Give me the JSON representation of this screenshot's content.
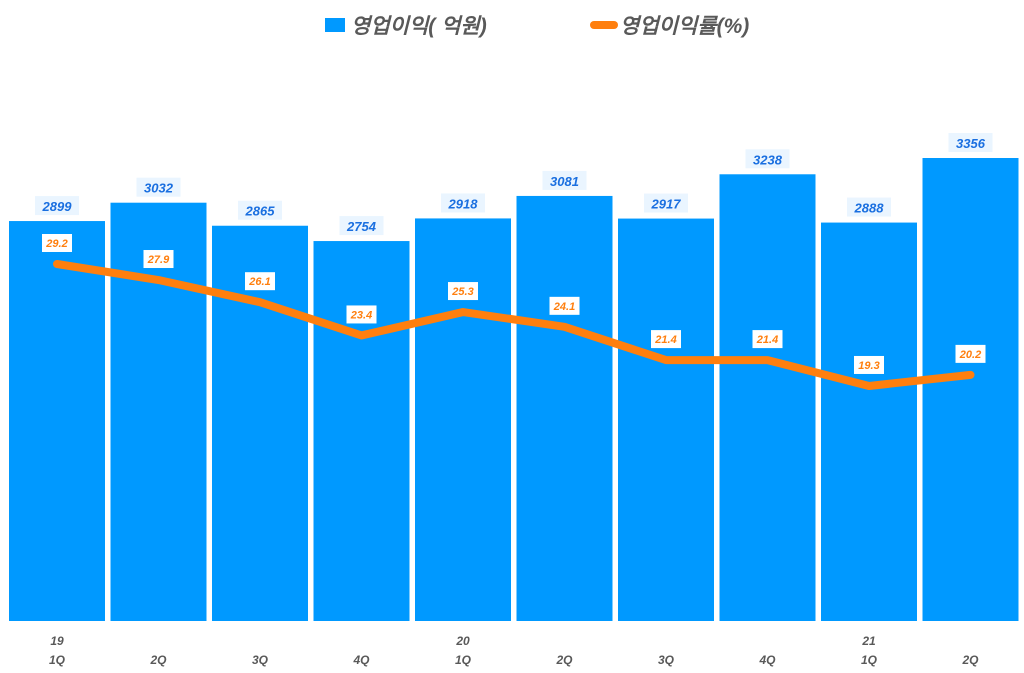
{
  "legend": {
    "bar_label": "영업이익( 억원)",
    "line_label": "영업이익률(%)"
  },
  "colors": {
    "bar": "#0099ff",
    "line": "#ff7f0e",
    "bar_label_text": "#1a6fe0",
    "axis_text": "#595959"
  },
  "chart_data": {
    "type": "bar",
    "title": "",
    "categories": [
      "19 1Q",
      "2Q",
      "3Q",
      "4Q",
      "20 1Q",
      "2Q",
      "3Q",
      "4Q",
      "21 1Q",
      "2Q"
    ],
    "x_tick_labels": [
      {
        "year": "19",
        "quarter": "1Q"
      },
      {
        "year": "",
        "quarter": "2Q"
      },
      {
        "year": "",
        "quarter": "3Q"
      },
      {
        "year": "",
        "quarter": "4Q"
      },
      {
        "year": "20",
        "quarter": "1Q"
      },
      {
        "year": "",
        "quarter": "2Q"
      },
      {
        "year": "",
        "quarter": "3Q"
      },
      {
        "year": "",
        "quarter": "4Q"
      },
      {
        "year": "21",
        "quarter": "1Q"
      },
      {
        "year": "",
        "quarter": "2Q"
      }
    ],
    "series": [
      {
        "name": "영업이익( 억원)",
        "type": "bar",
        "axis": "left",
        "values": [
          2899,
          3032,
          2865,
          2754,
          2918,
          3081,
          2917,
          3238,
          2888,
          3356
        ]
      },
      {
        "name": "영업이익률(%)",
        "type": "line",
        "axis": "right",
        "values": [
          29.2,
          27.9,
          26.1,
          23.4,
          25.3,
          24.1,
          21.4,
          21.4,
          19.3,
          20.2
        ]
      }
    ],
    "xlabel": "",
    "ylabel": "",
    "ylim": [
      0,
      3356
    ],
    "grid": false,
    "legend_position": "top"
  }
}
